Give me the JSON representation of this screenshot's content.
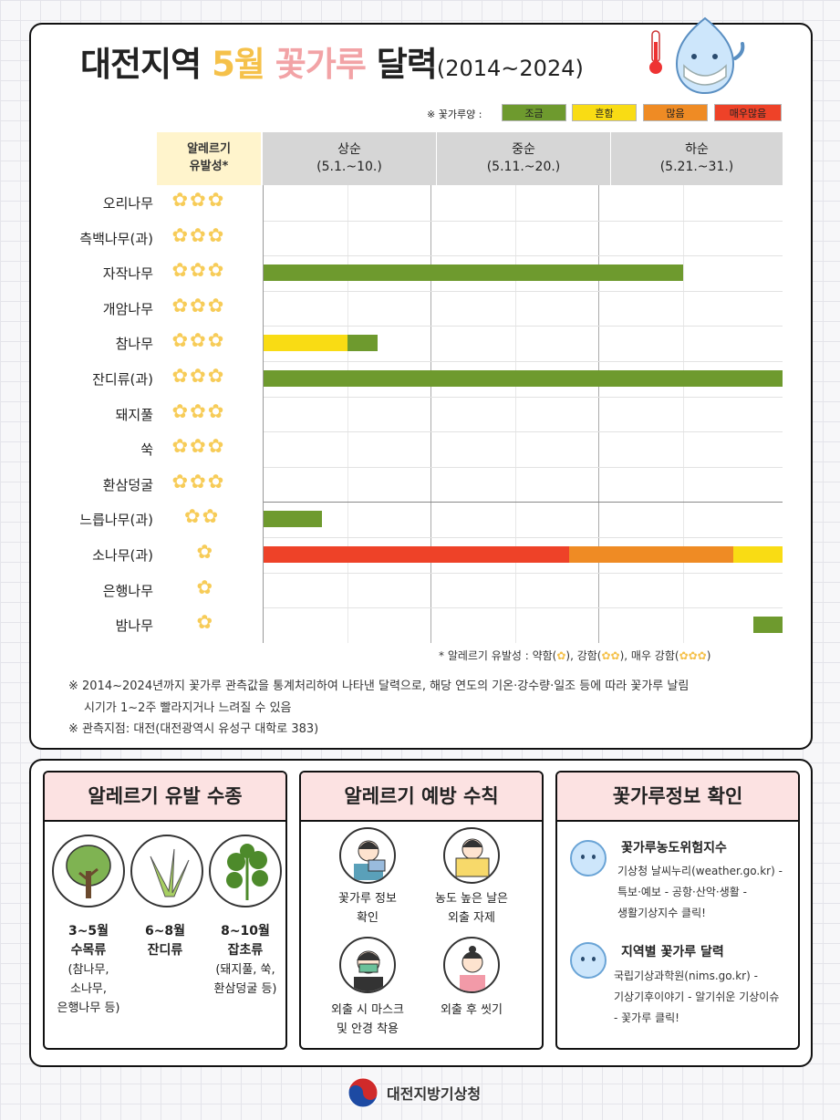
{
  "header": {
    "title_main": "대전지역",
    "title_month": "5월",
    "title_pollen": "꽃가루",
    "title_calendar": "달력",
    "title_years": "(2014~2024)"
  },
  "legend": {
    "label": "※ 꽃가루양 :",
    "levels": [
      {
        "label": "조금",
        "color": "#6e9a2e"
      },
      {
        "label": "흔함",
        "color": "#f9dc14"
      },
      {
        "label": "많음",
        "color": "#ef8b24"
      },
      {
        "label": "매우많음",
        "color": "#ee4228"
      }
    ]
  },
  "table": {
    "allergy_header_1": "알레르기",
    "allergy_header_2": "유발성*",
    "periods": [
      {
        "name": "상순",
        "range": "(5.1.~10.)"
      },
      {
        "name": "중순",
        "range": "(5.11.~20.)"
      },
      {
        "name": "하순",
        "range": "(5.21.~31.)"
      }
    ],
    "rows": [
      {
        "name": "오리나무",
        "stars": "✿✿✿",
        "bars": []
      },
      {
        "name": "측백나무(과)",
        "stars": "✿✿✿",
        "bars": []
      },
      {
        "name": "자작나무",
        "stars": "✿✿✿",
        "bars": [
          {
            "start": 1,
            "end": 25,
            "level": 0
          }
        ]
      },
      {
        "name": "개암나무",
        "stars": "✿✿✿",
        "bars": []
      },
      {
        "name": "참나무",
        "stars": "✿✿✿",
        "bars": [
          {
            "start": 1,
            "end": 6,
            "level": 1
          },
          {
            "start": 6,
            "end": 6.8,
            "level": 0
          }
        ]
      },
      {
        "name": "잔디류(과)",
        "stars": "✿✿✿",
        "bars": [
          {
            "start": 1,
            "end": 31,
            "level": 0
          }
        ]
      },
      {
        "name": "돼지풀",
        "stars": "✿✿✿",
        "bars": []
      },
      {
        "name": "쑥",
        "stars": "✿✿✿",
        "bars": []
      },
      {
        "name": "환삼덩굴",
        "stars": "✿✿✿",
        "bars": []
      },
      {
        "name": "느릅나무(과)",
        "stars": "✿✿",
        "bars": [
          {
            "start": 1,
            "end": 3.5,
            "level": 0
          }
        ]
      },
      {
        "name": "소나무(과)",
        "stars": "✿",
        "bars": [
          {
            "start": 1,
            "end": 19.2,
            "level": 3
          },
          {
            "start": 19.2,
            "end": 29,
            "level": 2
          },
          {
            "start": 29,
            "end": 31,
            "level": 1
          }
        ]
      },
      {
        "name": "은행나무",
        "stars": "✿",
        "bars": []
      },
      {
        "name": "밤나무",
        "stars": "✿",
        "bars": [
          {
            "start": 30.2,
            "end": 31,
            "level": 0
          }
        ]
      }
    ]
  },
  "allergy_note": {
    "prefix": "*  알레르기 유발성 : 약함(",
    "mid1": "), 강함(",
    "mid2": "), 매우 강함(",
    "suffix": ")",
    "s1": "✿",
    "s2": "✿✿",
    "s3": "✿✿✿"
  },
  "notes": {
    "line1": "※ 2014~2024년까지 꽃가루 관측값을 통계처리하여 나타낸 달력으로, 해당 연도의 기온·강수량·일조 등에 따라 꽃가루 날림",
    "line2": "시기가 1~2주 빨라지거나 느려질 수 있음",
    "line3": "※ 관측지점: 대전(대전광역시 유성구 대학로 383)"
  },
  "cards": {
    "species": {
      "title": "알레르기 유발 수종",
      "items": [
        {
          "months": "3~5월",
          "type": "수목류",
          "detail1": "(참나무,",
          "detail2": "소나무,",
          "detail3": "은행나무 등)"
        },
        {
          "months": "6~8월",
          "type": "잔디류"
        },
        {
          "months": "8~10월",
          "type": "잡초류",
          "detail1": "(돼지풀, 쑥,",
          "detail2": "환삼덩굴 등)"
        }
      ]
    },
    "prevention": {
      "title": "알레르기 예방 수칙",
      "items": [
        {
          "line1": "꽃가루 정보",
          "line2": "확인"
        },
        {
          "line1": "농도 높은 날은",
          "line2": "외출 자제"
        },
        {
          "line1": "외출 시 마스크",
          "line2": "및 안경 착용"
        },
        {
          "line1": "외출 후 씻기"
        }
      ]
    },
    "info": {
      "title": "꽃가루정보 확인",
      "items": [
        {
          "title": "꽃가루농도위험지수",
          "lines": [
            "기상청 날씨누리(weather.go.kr) -",
            "특보·예보 - 공항·산악·생활 -",
            "생활기상지수 클릭!"
          ]
        },
        {
          "title": "지역별 꽃가루 달력",
          "lines": [
            "국립기상과학원(nims.go.kr) -",
            "기상기후이야기 - 알기쉬운 기상이슈",
            "- 꽃가루 클릭!"
          ]
        }
      ]
    }
  },
  "footer": {
    "org": "대전지방기상청"
  }
}
